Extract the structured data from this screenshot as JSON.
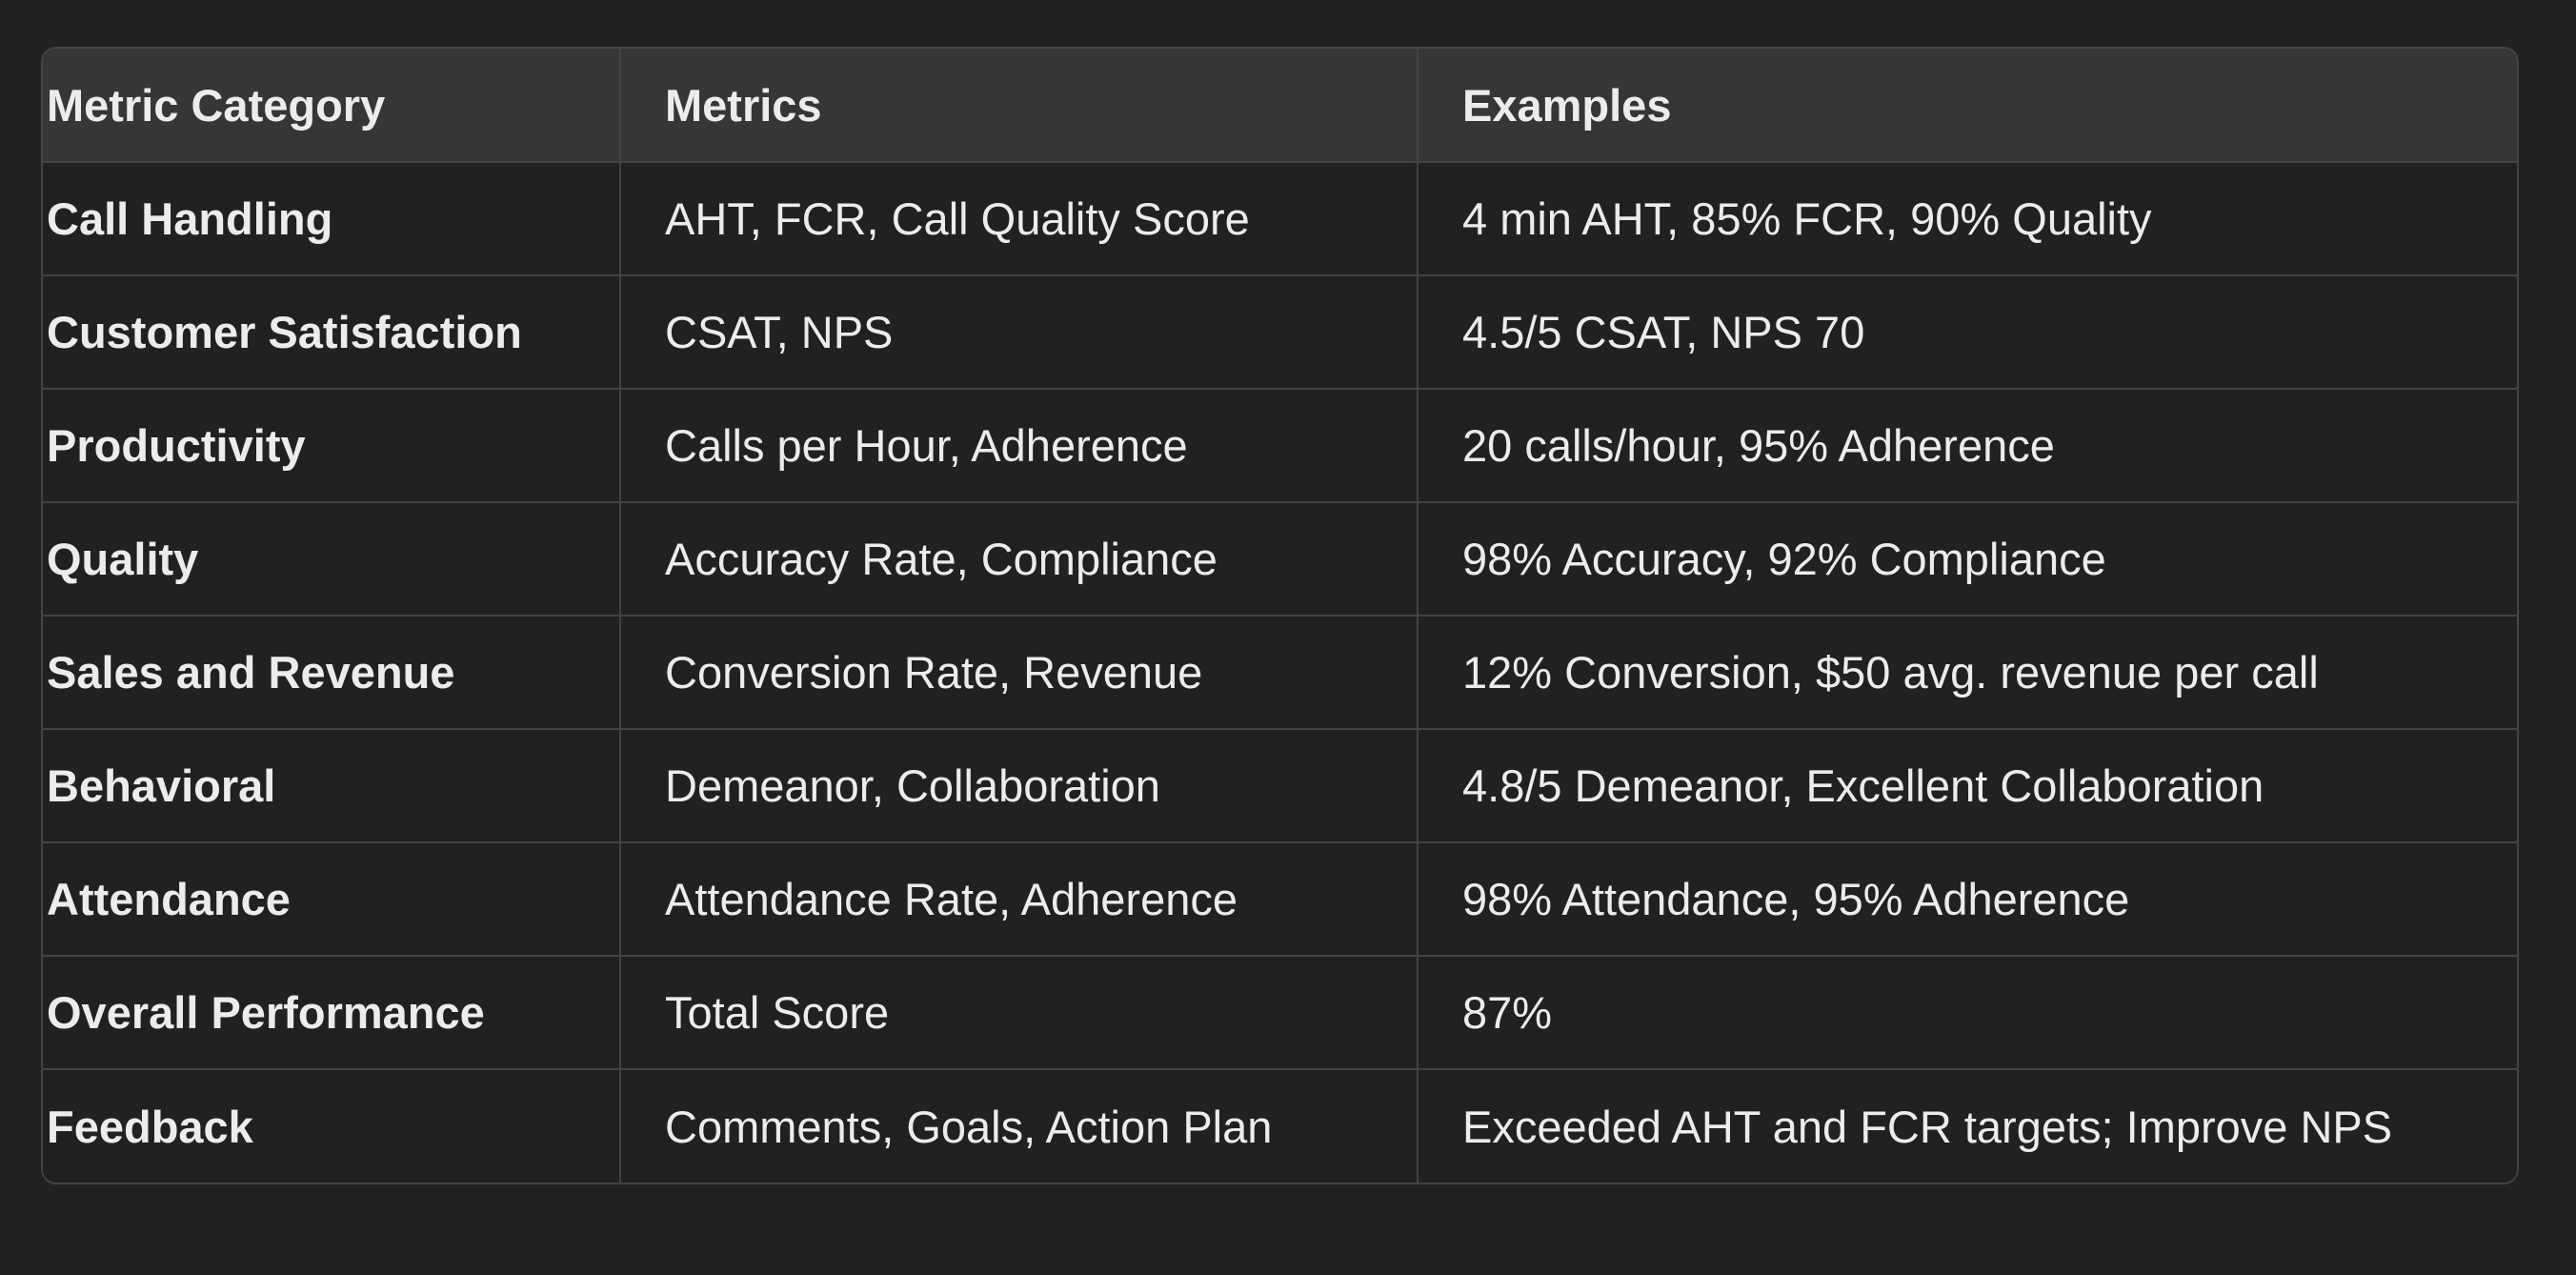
{
  "table": {
    "headers": [
      "Metric Category",
      "Metrics",
      "Examples"
    ],
    "rows": [
      {
        "category": "Call Handling",
        "metrics": "AHT, FCR, Call Quality Score",
        "examples": "4 min AHT, 85% FCR, 90% Quality"
      },
      {
        "category": "Customer Satisfaction",
        "metrics": "CSAT, NPS",
        "examples": "4.5/5 CSAT, NPS 70"
      },
      {
        "category": "Productivity",
        "metrics": "Calls per Hour, Adherence",
        "examples": "20 calls/hour, 95% Adherence"
      },
      {
        "category": "Quality",
        "metrics": "Accuracy Rate, Compliance",
        "examples": "98% Accuracy, 92% Compliance"
      },
      {
        "category": "Sales and Revenue",
        "metrics": "Conversion Rate, Revenue",
        "examples": "12% Conversion, $50 avg. revenue per call"
      },
      {
        "category": "Behavioral",
        "metrics": "Demeanor, Collaboration",
        "examples": "4.8/5 Demeanor, Excellent Collaboration"
      },
      {
        "category": "Attendance",
        "metrics": "Attendance Rate, Adherence",
        "examples": "98% Attendance, 95% Adherence"
      },
      {
        "category": "Overall Performance",
        "metrics": "Total Score",
        "examples": "87%"
      },
      {
        "category": "Feedback",
        "metrics": "Comments, Goals, Action Plan",
        "examples": "Exceeded AHT and FCR targets; Improve NPS"
      }
    ]
  },
  "colors": {
    "background": "#212121",
    "header_background": "#363636",
    "border": "#444444",
    "text": "#ececec"
  }
}
